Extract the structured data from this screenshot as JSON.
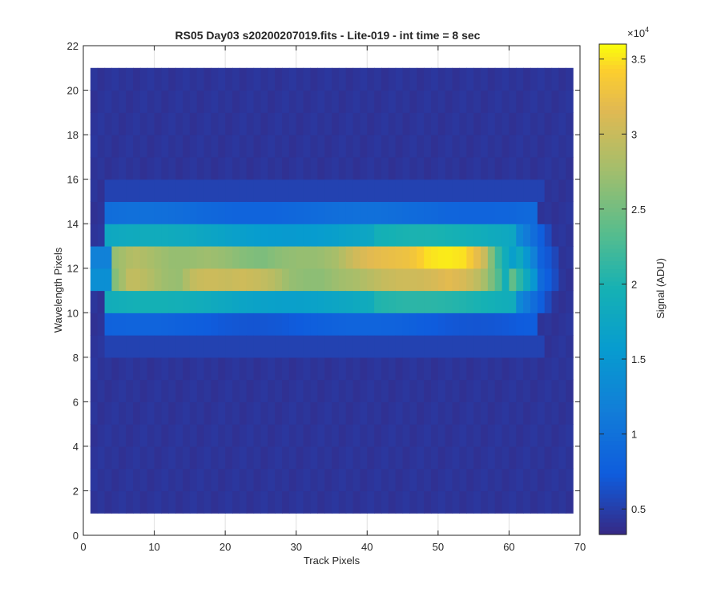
{
  "chart_data": {
    "type": "heatmap",
    "title": "RS05 Day03  s20200207019.fits - Lite-019 - int time = 8 sec",
    "xlabel": "Track Pixels",
    "ylabel": "Wavelength Pixels",
    "xlim": [
      0,
      70
    ],
    "ylim": [
      0,
      22
    ],
    "x_ticks": [
      "0",
      "10",
      "20",
      "30",
      "40",
      "50",
      "60",
      "70"
    ],
    "y_ticks": [
      "0",
      "2",
      "4",
      "6",
      "8",
      "10",
      "12",
      "14",
      "16",
      "18",
      "20",
      "22"
    ],
    "grid": true,
    "colormap": "parula",
    "colorbar": {
      "label": "Signal (ADU)",
      "exponent_label": "×10",
      "exponent_power": "4",
      "range": [
        3300,
        36000
      ],
      "ticks": [
        "0.5",
        "1",
        "1.5",
        "2",
        "2.5",
        "3",
        "3.5"
      ],
      "tick_values": [
        5000,
        10000,
        15000,
        20000,
        25000,
        30000,
        35000
      ]
    },
    "x_columns": [
      1,
      69
    ],
    "rows": [
      {
        "y": 11.5,
        "desc": "peak row",
        "range": [
          3,
          66
        ],
        "peak_values_adu": [
          26000,
          30000,
          29000,
          27500,
          27000,
          30000,
          30500,
          30000,
          30500,
          30000,
          29000,
          27000,
          26500,
          26500,
          27500,
          28000,
          29000,
          30000,
          30500,
          30500,
          31000,
          32000,
          31000,
          29000,
          24000,
          15000
        ]
      },
      {
        "y": 12.5,
        "desc": "second peak row",
        "range": [
          3,
          66
        ],
        "peak_values_adu": [
          27000,
          29000,
          28000,
          27000,
          27000,
          27500,
          27000,
          26000,
          25500,
          26500,
          27000,
          27000,
          28000,
          30500,
          32000,
          32500,
          33000,
          35000,
          35500,
          35000,
          31000,
          20000,
          14000
        ]
      }
    ],
    "background_adu": 3800
  }
}
